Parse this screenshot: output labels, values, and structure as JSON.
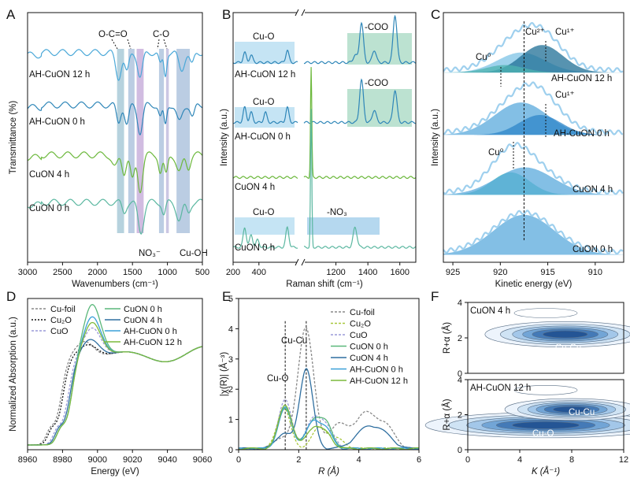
{
  "chart_data": [
    {
      "panel": "A",
      "type": "line",
      "title": "",
      "xlabel": "Wavenumbers (cm⁻¹)",
      "ylabel": "Transmittance (%)",
      "xlim": [
        3000,
        500
      ],
      "x_ticks": [
        "3000",
        "2500",
        "2000",
        "1500",
        "1000",
        "500"
      ],
      "bands": [
        {
          "from": 1720,
          "to": 1620,
          "color": "#2f7fa0"
        },
        {
          "from": 1560,
          "to": 1470,
          "color": "#3b6fb0"
        },
        {
          "from": 1440,
          "to": 1340,
          "color": "#7a3fa8"
        },
        {
          "from": 1120,
          "to": 1050,
          "color": "#3b6fb0"
        },
        {
          "from": 1020,
          "to": 980,
          "color": "#6a5fb0"
        },
        {
          "from": 870,
          "to": 680,
          "color": "#3b6fb0"
        }
      ],
      "annotations": [
        "O-C=O",
        "C-O",
        "NO₃⁻",
        "Cu-OH"
      ],
      "series": [
        {
          "name": "AH-CuON 12 h",
          "color": "#4aa8d8",
          "offset": 0.84,
          "features": [
            [
              1700,
              0.1,
              40
            ],
            [
              1580,
              0.08,
              30
            ],
            [
              1390,
              0.1,
              35
            ],
            [
              1100,
              0.05,
              25
            ],
            [
              1030,
              0.09,
              20
            ],
            [
              800,
              0.07,
              40
            ],
            [
              650,
              0.05,
              30
            ]
          ]
        },
        {
          "name": "AH-CuON 0 h",
          "color": "#2e86b8",
          "offset": 0.63,
          "features": [
            [
              1700,
              0.07,
              30
            ],
            [
              1580,
              0.08,
              30
            ],
            [
              1390,
              0.11,
              35
            ],
            [
              1100,
              0.05,
              25
            ],
            [
              1030,
              0.08,
              20
            ],
            [
              830,
              0.07,
              40
            ],
            [
              640,
              0.05,
              30
            ]
          ]
        },
        {
          "name": "CuON 4 h",
          "color": "#6cb83c",
          "offset": 0.43,
          "features": [
            [
              1750,
              0.05,
              40
            ],
            [
              1620,
              0.07,
              30
            ],
            [
              1500,
              0.1,
              30
            ],
            [
              1390,
              0.14,
              35
            ],
            [
              1100,
              0.07,
              25
            ],
            [
              1020,
              0.08,
              25
            ],
            [
              830,
              0.07,
              40
            ],
            [
              700,
              0.05,
              30
            ]
          ]
        },
        {
          "name": "CuON 0 h",
          "color": "#5ab7a0",
          "offset": 0.24,
          "features": [
            [
              1620,
              0.04,
              30
            ],
            [
              1380,
              0.12,
              40
            ],
            [
              1050,
              0.05,
              25
            ],
            [
              830,
              0.07,
              40
            ],
            [
              700,
              0.04,
              30
            ]
          ]
        }
      ]
    },
    {
      "panel": "B",
      "type": "line",
      "title": "",
      "xlabel": "Raman shift (cm⁻¹)",
      "ylabel": "Intensity (a.u.)",
      "x_ticks": [
        "200",
        "400",
        "1200",
        "1400",
        "1600"
      ],
      "annotations": [
        "Cu-O",
        "-COO",
        "Cu-O",
        "-COO",
        "Cu-O",
        "-NO₃"
      ],
      "series": [
        {
          "name": "AH-CuON 12 h",
          "color": "#2e86b8",
          "offset": 0.8,
          "peaks_low": [
            [
              290,
              0.04
            ],
            [
              340,
              0.03
            ],
            [
              620,
              0.05
            ]
          ],
          "peaks_high": [
            [
              1320,
              0.03
            ],
            [
              1360,
              0.16
            ],
            [
              1440,
              0.05
            ],
            [
              1570,
              0.19
            ]
          ]
        },
        {
          "name": "AH-CuON 0 h",
          "color": "#2e86b8",
          "offset": 0.56,
          "peaks_low": [
            [
              290,
              0.06
            ],
            [
              340,
              0.04
            ],
            [
              450,
              0.04
            ],
            [
              620,
              0.06
            ]
          ],
          "peaks_high": [
            [
              1360,
              0.17
            ],
            [
              1440,
              0.05
            ],
            [
              1570,
              0.13
            ]
          ]
        },
        {
          "name": "CuON 4 h",
          "color": "#6cb83c",
          "offset": 0.34,
          "peaks_low": [],
          "peaks_high": [
            [
              1045,
              0.44
            ]
          ]
        },
        {
          "name": "CuON 0 h",
          "color": "#5ab7a0",
          "offset": 0.06,
          "peaks_low": [
            [
              290,
              0.08
            ],
            [
              340,
              0.05
            ],
            [
              390,
              0.03
            ],
            [
              620,
              0.08
            ]
          ],
          "peaks_high": [
            [
              1045,
              0.55
            ],
            [
              1320,
              0.08
            ]
          ]
        }
      ]
    },
    {
      "panel": "C",
      "type": "area",
      "title": "",
      "xlabel": "Kinetic energy (eV)",
      "ylabel": "Intensity (a.u.)",
      "xlim": [
        926,
        907
      ],
      "x_ticks": [
        "925",
        "920",
        "915",
        "910"
      ],
      "annotations": [
        "Cu⁰",
        "Cu²⁺",
        "Cu¹⁺",
        "Cu¹⁺",
        "Cu⁰"
      ],
      "reference_line_eV": 917.5,
      "series": [
        {
          "name": "AH-CuON 12 h",
          "offset": 0.76,
          "components": [
            [
              917.8,
              0.08,
              2.5,
              "#7ec3e6"
            ],
            [
              915.6,
              0.11,
              2.2,
              "#1f6f95"
            ],
            [
              919.5,
              0.03,
              2.0,
              "#4db3b0"
            ]
          ]
        },
        {
          "name": "AH-CuON 0 h",
          "offset": 0.51,
          "components": [
            [
              917.8,
              0.13,
              2.8,
              "#5aa9dc"
            ],
            [
              915.8,
              0.08,
              2.2,
              "#2e86c8"
            ]
          ]
        },
        {
          "name": "CuON 4 h",
          "offset": 0.27,
          "components": [
            [
              918.9,
              0.09,
              2.0,
              "#3fbcb0"
            ],
            [
              917.4,
              0.11,
              3.0,
              "#5aa9dc"
            ]
          ]
        },
        {
          "name": "CuON 0 h",
          "offset": 0.03,
          "components": [
            [
              917.5,
              0.16,
              3.2,
              "#5aa9dc"
            ]
          ]
        }
      ]
    },
    {
      "panel": "D",
      "type": "line",
      "title": "",
      "xlabel": "Energy (eV)",
      "ylabel": "Normalized Absorption (a.u.)",
      "xlim": [
        8960,
        9060
      ],
      "x_ticks": [
        "8960",
        "8980",
        "9000",
        "9020",
        "9040",
        "9060"
      ],
      "series": [
        {
          "name": "Cu-foil",
          "color": "#888888",
          "dash": "3,2",
          "edge": 8979,
          "white_line": 0.15,
          "peak_at": 8993
        },
        {
          "name": "Cu₂O",
          "color": "#111111",
          "dash": "2,2",
          "edge": 8980,
          "white_line": 0.12,
          "peak_at": 8995
        },
        {
          "name": "CuO",
          "color": "#9a9ad8",
          "dash": "3,2",
          "edge": 8983,
          "white_line": 0.3,
          "peak_at": 8997
        },
        {
          "name": "CuON 0 h",
          "color": "#5ab77a",
          "dash": "",
          "edge": 8985,
          "white_line": 0.55,
          "peak_at": 8997
        },
        {
          "name": "CuON 4 h",
          "color": "#2f6fa0",
          "dash": "",
          "edge": 8984,
          "white_line": 0.18,
          "peak_at": 8996
        },
        {
          "name": "AH-CuON 0 h",
          "color": "#3aa0d8",
          "dash": "",
          "edge": 8985,
          "white_line": 0.42,
          "peak_at": 8997
        },
        {
          "name": "AH-CuON 12 h",
          "color": "#7cba3c",
          "dash": "",
          "edge": 8985,
          "white_line": 0.36,
          "peak_at": 8997
        }
      ]
    },
    {
      "panel": "E",
      "type": "line",
      "title": "",
      "xlabel": "R (Å)",
      "ylabel": "|χ(R)| (Å⁻³)",
      "xlim": [
        0,
        6
      ],
      "ylim": [
        0,
        5
      ],
      "x_ticks": [
        "0",
        "2",
        "4",
        "6"
      ],
      "y_ticks": [
        "0",
        "1",
        "2",
        "3",
        "4",
        "5"
      ],
      "annotations": [
        "Cu-Cu",
        "Cu-O"
      ],
      "ref_lines": [
        1.55,
        2.25
      ],
      "series": [
        {
          "name": "Cu-foil",
          "color": "#888888",
          "dash": "3,2",
          "peaks": [
            [
              2.24,
              4.0,
              0.26
            ],
            [
              1.5,
              0.35,
              0.3
            ],
            [
              3.3,
              0.8,
              0.3
            ],
            [
              4.2,
              1.15,
              0.35
            ],
            [
              4.9,
              0.7,
              0.3
            ]
          ]
        },
        {
          "name": "Cu₂O",
          "color": "#a8c83c",
          "dash": "3,2",
          "peaks": [
            [
              1.5,
              1.35,
              0.22
            ],
            [
              2.7,
              0.7,
              0.25
            ],
            [
              3.3,
              0.3,
              0.25
            ]
          ]
        },
        {
          "name": "CuO",
          "color": "#9a9ad8",
          "dash": "3,2",
          "peaks": [
            [
              1.55,
              1.6,
              0.22
            ],
            [
              2.5,
              0.95,
              0.25
            ],
            [
              2.95,
              0.6,
              0.25
            ]
          ]
        },
        {
          "name": "CuON 0 h",
          "color": "#5ab77a",
          "dash": "",
          "peaks": [
            [
              1.55,
              1.35,
              0.22
            ],
            [
              2.5,
              0.95,
              0.25
            ],
            [
              2.95,
              0.7,
              0.2
            ]
          ]
        },
        {
          "name": "CuON 4 h",
          "color": "#2f6fa0",
          "dash": "",
          "peaks": [
            [
              2.25,
              2.65,
              0.22
            ],
            [
              1.5,
              0.5,
              0.25
            ],
            [
              4.3,
              0.7,
              0.4
            ],
            [
              4.9,
              0.3,
              0.3
            ]
          ]
        },
        {
          "name": "AH-CuON 0 h",
          "color": "#3aa0d8",
          "dash": "",
          "peaks": [
            [
              1.55,
              1.35,
              0.22
            ],
            [
              2.5,
              0.9,
              0.25
            ],
            [
              2.95,
              0.5,
              0.2
            ]
          ]
        },
        {
          "name": "AH-CuON 12 h",
          "color": "#7cba3c",
          "dash": "",
          "peaks": [
            [
              1.55,
              1.45,
              0.22
            ],
            [
              2.5,
              0.7,
              0.25
            ],
            [
              2.95,
              0.4,
              0.2
            ]
          ]
        }
      ]
    },
    {
      "panel": "F",
      "type": "heatmap",
      "title": "",
      "xlabel": "K (Å⁻¹)",
      "ylabel": "R+α (Å)",
      "xlim": [
        0,
        12
      ],
      "ylim": [
        0,
        4
      ],
      "x_ticks": [
        "0",
        "4",
        "8",
        "12"
      ],
      "y_ticks": [
        "0",
        "2",
        "4"
      ],
      "maps": [
        {
          "name": "CuON 4 h",
          "labels": [
            "Cu-Cu"
          ],
          "centers": [
            [
              7.5,
              2.2,
              3.0,
              0.35
            ]
          ]
        },
        {
          "name": "AH-CuON 12 h",
          "labels": [
            "Cu-Cu",
            "Cu-O"
          ],
          "centers": [
            [
              6.0,
              1.4,
              4.5,
              0.35
            ],
            [
              8.0,
              2.3,
              2.5,
              0.3
            ]
          ]
        }
      ]
    }
  ],
  "panel_labels": [
    "A",
    "B",
    "C",
    "D",
    "E",
    "F"
  ]
}
